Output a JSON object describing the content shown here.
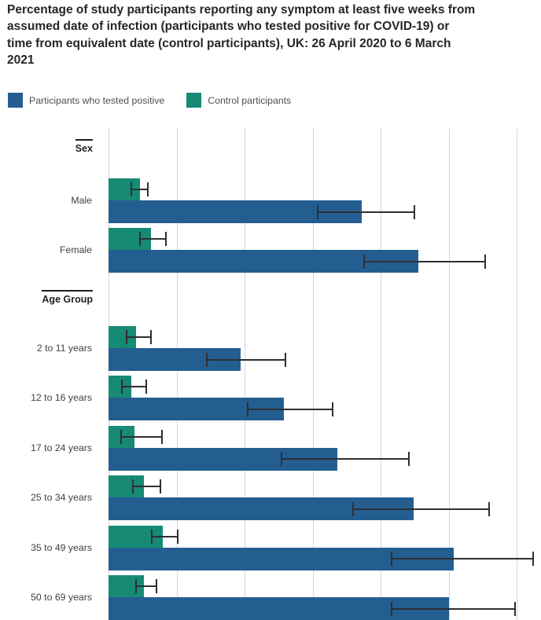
{
  "title": "Percentage of study participants reporting any symptom at least five weeks from assumed date of infection (participants who tested positive for COVID-19) or time from equivalent date (control participants), UK: 26 April 2020 to 6 March 2021",
  "legend": [
    {
      "label": "Participants who tested positive",
      "series": "positive",
      "color": "#245e91"
    },
    {
      "label": "Control participants",
      "series": "control",
      "color": "#168a75"
    }
  ],
  "colors": {
    "positive": "#245e91",
    "control": "#168a75",
    "grid": "#d7d7d7",
    "error_bar": "#2f2f2f",
    "title_text": "#262626",
    "label_text": "#414042"
  },
  "chart_data": {
    "type": "bar",
    "orientation": "horizontal",
    "unit": "percent",
    "title": "Percentage of study participants reporting any symptom at least five weeks from assumed date of infection (participants who tested positive for COVID-19) or time from equivalent date (control participants), UK: 26 April 2020 to 6 March 2021",
    "xlabel": "",
    "ylabel": "",
    "xlim": [
      0,
      31.8
    ],
    "gridlines_pct": [
      0,
      5,
      10,
      15,
      20,
      25,
      30
    ],
    "x_tick_labels_visible": false,
    "grid": true,
    "legend_position": "top",
    "series_names": {
      "positive": "Participants who tested positive",
      "control": "Control participants"
    },
    "error_bars": "95% confidence interval",
    "sections": [
      {
        "header": "Sex",
        "rows": [
          {
            "label": "Male",
            "positive": {
              "value": 18.6,
              "ci_low": 15.4,
              "ci_high": 22.5
            },
            "control": {
              "value": 2.3,
              "ci_low": 1.7,
              "ci_high": 2.9
            }
          },
          {
            "label": "Female",
            "positive": {
              "value": 22.8,
              "ci_low": 18.8,
              "ci_high": 27.7
            },
            "control": {
              "value": 3.1,
              "ci_low": 2.3,
              "ci_high": 4.2
            }
          }
        ]
      },
      {
        "header": "Age Group",
        "rows": [
          {
            "label": "2 to 11 years",
            "positive": {
              "value": 9.7,
              "ci_low": 7.2,
              "ci_high": 13.0
            },
            "control": {
              "value": 2.0,
              "ci_low": 1.3,
              "ci_high": 3.1
            }
          },
          {
            "label": "12 to 16 years",
            "positive": {
              "value": 12.9,
              "ci_low": 10.2,
              "ci_high": 16.5
            },
            "control": {
              "value": 1.7,
              "ci_low": 1.0,
              "ci_high": 2.8
            }
          },
          {
            "label": "17 to 24 years",
            "positive": {
              "value": 16.8,
              "ci_low": 12.7,
              "ci_high": 22.1
            },
            "control": {
              "value": 1.9,
              "ci_low": 0.9,
              "ci_high": 3.9
            }
          },
          {
            "label": "25 to 34 years",
            "positive": {
              "value": 22.4,
              "ci_low": 18.0,
              "ci_high": 28.0
            },
            "control": {
              "value": 2.6,
              "ci_low": 1.8,
              "ci_high": 3.8
            }
          },
          {
            "label": "35 to 49 years",
            "positive": {
              "value": 25.4,
              "ci_low": 20.8,
              "ci_high": 31.2
            },
            "control": {
              "value": 4.0,
              "ci_low": 3.2,
              "ci_high": 5.1
            }
          },
          {
            "label": "50 to 69 years",
            "positive": {
              "value": 25.0,
              "ci_low": 20.8,
              "ci_high": 29.9
            },
            "control": {
              "value": 2.6,
              "ci_low": 2.0,
              "ci_high": 3.5
            }
          }
        ]
      }
    ]
  }
}
